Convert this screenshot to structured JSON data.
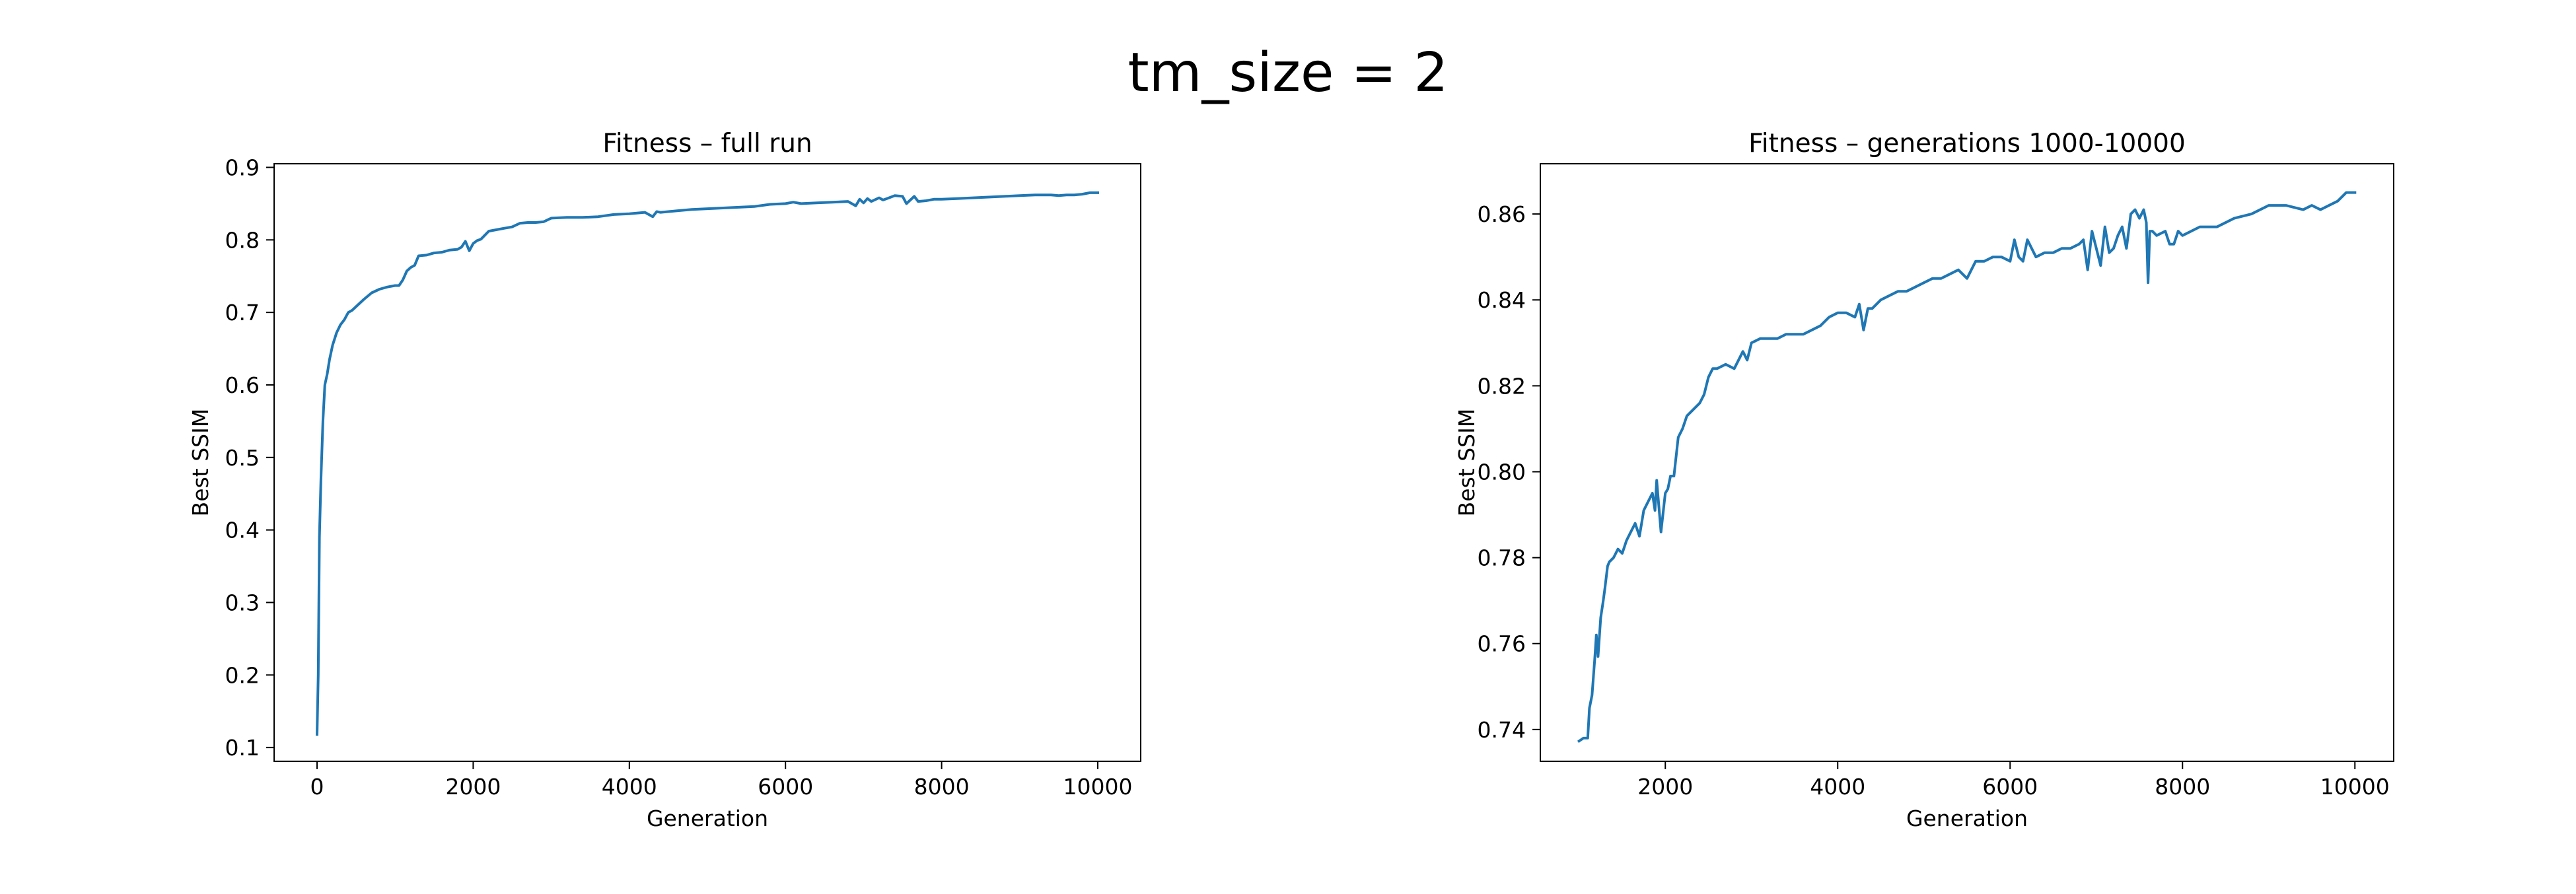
{
  "figure": {
    "suptitle": "tm_size = 2"
  },
  "colors": {
    "line": "#1f77b4",
    "axes": "#000000",
    "background": "#ffffff"
  },
  "chart_data": [
    {
      "type": "line",
      "title": "Fitness – full run",
      "xlabel": "Generation",
      "ylabel": "Best SSIM",
      "xlim": [
        -550,
        10550
      ],
      "ylim": [
        0.081,
        0.905
      ],
      "xticks": [
        0,
        2000,
        4000,
        6000,
        8000,
        10000
      ],
      "xtick_labels": [
        "0",
        "2000",
        "4000",
        "6000",
        "8000",
        "10000"
      ],
      "yticks": [
        0.1,
        0.2,
        0.3,
        0.4,
        0.5,
        0.6,
        0.7,
        0.8,
        0.9
      ],
      "ytick_labels": [
        "0.1",
        "0.2",
        "0.3",
        "0.4",
        "0.5",
        "0.6",
        "0.7",
        "0.8",
        "0.9"
      ],
      "grid": false,
      "series": [
        {
          "x": [
            0,
            15,
            30,
            50,
            75,
            100,
            130,
            160,
            200,
            250,
            300,
            350,
            400,
            450,
            500,
            550,
            600,
            700,
            800,
            900,
            1000,
            1050,
            1100,
            1150,
            1200,
            1250,
            1300,
            1400,
            1500,
            1600,
            1700,
            1800,
            1850,
            1900,
            1950,
            2000,
            2050,
            2100,
            2200,
            2300,
            2400,
            2500,
            2600,
            2700,
            2800,
            2900,
            3000,
            3200,
            3400,
            3600,
            3800,
            4000,
            4200,
            4300,
            4350,
            4400,
            4600,
            4800,
            5000,
            5200,
            5400,
            5600,
            5800,
            6000,
            6100,
            6200,
            6400,
            6600,
            6800,
            6900,
            6950,
            7000,
            7050,
            7100,
            7200,
            7250,
            7300,
            7400,
            7500,
            7550,
            7600,
            7650,
            7700,
            7800,
            7900,
            8000,
            8200,
            8400,
            8600,
            8800,
            9000,
            9200,
            9400,
            9500,
            9600,
            9700,
            9800,
            9900,
            10000
          ],
          "y": [
            0.118,
            0.2,
            0.39,
            0.47,
            0.55,
            0.6,
            0.615,
            0.635,
            0.655,
            0.672,
            0.683,
            0.69,
            0.7,
            0.703,
            0.708,
            0.713,
            0.718,
            0.727,
            0.732,
            0.735,
            0.737,
            0.737,
            0.745,
            0.757,
            0.762,
            0.765,
            0.778,
            0.779,
            0.782,
            0.783,
            0.786,
            0.787,
            0.79,
            0.798,
            0.785,
            0.795,
            0.799,
            0.801,
            0.812,
            0.814,
            0.816,
            0.818,
            0.823,
            0.824,
            0.824,
            0.825,
            0.83,
            0.831,
            0.831,
            0.832,
            0.835,
            0.836,
            0.838,
            0.832,
            0.839,
            0.838,
            0.84,
            0.842,
            0.843,
            0.844,
            0.845,
            0.846,
            0.849,
            0.85,
            0.852,
            0.85,
            0.851,
            0.852,
            0.853,
            0.847,
            0.856,
            0.851,
            0.857,
            0.853,
            0.858,
            0.855,
            0.857,
            0.861,
            0.86,
            0.85,
            0.855,
            0.86,
            0.853,
            0.854,
            0.856,
            0.856,
            0.857,
            0.858,
            0.859,
            0.86,
            0.861,
            0.862,
            0.862,
            0.861,
            0.862,
            0.862,
            0.863,
            0.865,
            0.865
          ]
        }
      ]
    },
    {
      "type": "line",
      "title": "Fitness – generations 1000-10000",
      "xlabel": "Generation",
      "ylabel": "Best SSIM",
      "xlim": [
        550,
        10450
      ],
      "ylim": [
        0.7326,
        0.8717
      ],
      "xticks": [
        2000,
        4000,
        6000,
        8000,
        10000
      ],
      "xtick_labels": [
        "2000",
        "4000",
        "6000",
        "8000",
        "10000"
      ],
      "yticks": [
        0.74,
        0.76,
        0.78,
        0.8,
        0.82,
        0.84,
        0.86
      ],
      "ytick_labels": [
        "0.74",
        "0.76",
        "0.78",
        "0.80",
        "0.82",
        "0.84",
        "0.86"
      ],
      "grid": false,
      "series": [
        {
          "x": [
            1000,
            1050,
            1100,
            1120,
            1150,
            1180,
            1200,
            1220,
            1250,
            1280,
            1300,
            1330,
            1350,
            1400,
            1450,
            1500,
            1550,
            1600,
            1650,
            1700,
            1750,
            1800,
            1850,
            1880,
            1900,
            1950,
            2000,
            2030,
            2060,
            2100,
            2150,
            2200,
            2250,
            2300,
            2350,
            2400,
            2450,
            2500,
            2550,
            2600,
            2700,
            2800,
            2900,
            2950,
            3000,
            3100,
            3200,
            3300,
            3400,
            3500,
            3600,
            3700,
            3800,
            3900,
            4000,
            4100,
            4200,
            4250,
            4300,
            4350,
            4400,
            4500,
            4600,
            4700,
            4800,
            4900,
            5000,
            5100,
            5200,
            5300,
            5400,
            5500,
            5600,
            5700,
            5800,
            5900,
            6000,
            6050,
            6100,
            6150,
            6200,
            6300,
            6400,
            6500,
            6600,
            6700,
            6800,
            6850,
            6900,
            6950,
            7000,
            7050,
            7100,
            7150,
            7200,
            7250,
            7300,
            7350,
            7400,
            7450,
            7500,
            7550,
            7580,
            7600,
            7620,
            7650,
            7700,
            7800,
            7850,
            7900,
            7950,
            8000,
            8200,
            8400,
            8600,
            8800,
            9000,
            9200,
            9400,
            9500,
            9600,
            9700,
            9800,
            9900,
            10000
          ],
          "y": [
            0.7373,
            0.738,
            0.738,
            0.745,
            0.748,
            0.756,
            0.762,
            0.757,
            0.766,
            0.77,
            0.773,
            0.778,
            0.779,
            0.78,
            0.782,
            0.781,
            0.784,
            0.786,
            0.788,
            0.785,
            0.791,
            0.793,
            0.795,
            0.791,
            0.798,
            0.786,
            0.795,
            0.796,
            0.799,
            0.799,
            0.808,
            0.81,
            0.813,
            0.814,
            0.815,
            0.816,
            0.818,
            0.822,
            0.824,
            0.824,
            0.825,
            0.824,
            0.828,
            0.826,
            0.83,
            0.831,
            0.831,
            0.831,
            0.832,
            0.832,
            0.832,
            0.833,
            0.834,
            0.836,
            0.837,
            0.837,
            0.836,
            0.839,
            0.833,
            0.838,
            0.838,
            0.84,
            0.841,
            0.842,
            0.842,
            0.843,
            0.844,
            0.845,
            0.845,
            0.846,
            0.847,
            0.845,
            0.849,
            0.849,
            0.85,
            0.85,
            0.849,
            0.854,
            0.85,
            0.849,
            0.854,
            0.85,
            0.851,
            0.851,
            0.852,
            0.852,
            0.853,
            0.854,
            0.847,
            0.856,
            0.852,
            0.848,
            0.857,
            0.851,
            0.852,
            0.855,
            0.857,
            0.852,
            0.86,
            0.861,
            0.859,
            0.861,
            0.858,
            0.844,
            0.856,
            0.856,
            0.855,
            0.856,
            0.853,
            0.853,
            0.856,
            0.855,
            0.857,
            0.857,
            0.859,
            0.86,
            0.862,
            0.862,
            0.861,
            0.862,
            0.861,
            0.862,
            0.863,
            0.865,
            0.865
          ]
        }
      ]
    }
  ]
}
